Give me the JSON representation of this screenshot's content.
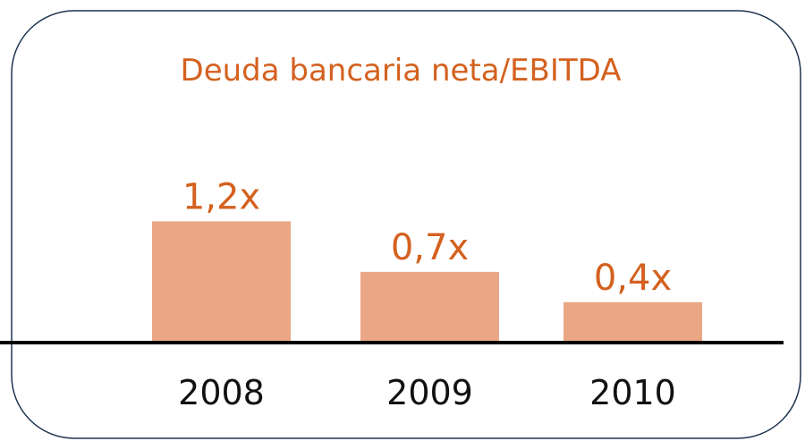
{
  "chart_data": {
    "type": "bar",
    "title": "Deuda bancaria neta/EBITDA",
    "categories": [
      "2008",
      "2009",
      "2010"
    ],
    "values": [
      1.2,
      0.7,
      0.4
    ],
    "value_labels": [
      "1,2x",
      "0,7x",
      "0,4x"
    ],
    "color": "#eaa785"
  }
}
